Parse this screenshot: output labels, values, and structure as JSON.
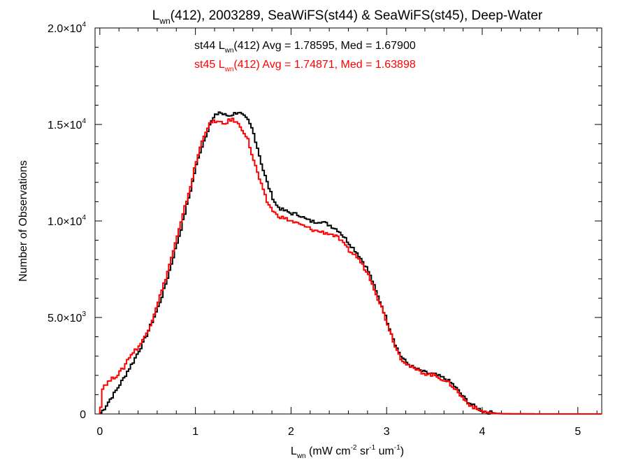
{
  "chart_data": {
    "type": "line",
    "step": true,
    "title": {
      "main": "L",
      "sub": "wn",
      "rest": "(412), 2003289, SeaWiFS(st44) & SeaWiFS(st45), Deep-Water"
    },
    "ylabel": "Number of Observations",
    "xlabel": {
      "main": "L",
      "sub": "wn",
      "units": " (mW cm",
      "sup1": "-2",
      "mid": " sr",
      "sup2": "-1",
      "mid2": " um",
      "sup3": "-1",
      "end": ")"
    },
    "xlim": [
      -0.05,
      5.25
    ],
    "ylim": [
      0,
      20000
    ],
    "x_ticks": [
      {
        "v": 0,
        "label": "0"
      },
      {
        "v": 1,
        "label": "1"
      },
      {
        "v": 2,
        "label": "2"
      },
      {
        "v": 3,
        "label": "3"
      },
      {
        "v": 4,
        "label": "4"
      },
      {
        "v": 5,
        "label": "5"
      }
    ],
    "y_ticks": [
      {
        "v": 0,
        "mant": "0",
        "exp": ""
      },
      {
        "v": 5000,
        "mant": "5.0×10",
        "exp": "3"
      },
      {
        "v": 10000,
        "mant": "1.0×10",
        "exp": "4"
      },
      {
        "v": 15000,
        "mant": "1.5×10",
        "exp": "4"
      },
      {
        "v": 20000,
        "mant": "2.0×10",
        "exp": "4"
      }
    ],
    "annotations": [
      {
        "pre": "st44 L",
        "sub": "wn",
        "post": "(412) Avg = 1.78595, Med = 1.67900",
        "color": "#000000"
      },
      {
        "pre": "st45 L",
        "sub": "wn",
        "post": "(412) Avg = 1.74871, Med = 1.63898",
        "color": "#ff0000"
      }
    ],
    "series": [
      {
        "color": "#000000",
        "points": [
          [
            0,
            0
          ],
          [
            0.05,
            300
          ],
          [
            0.1,
            700
          ],
          [
            0.15,
            1050
          ],
          [
            0.2,
            1450
          ],
          [
            0.25,
            1850
          ],
          [
            0.3,
            2300
          ],
          [
            0.35,
            2700
          ],
          [
            0.4,
            3200
          ],
          [
            0.45,
            3650
          ],
          [
            0.5,
            4200
          ],
          [
            0.55,
            4800
          ],
          [
            0.6,
            5400
          ],
          [
            0.65,
            6100
          ],
          [
            0.7,
            6900
          ],
          [
            0.75,
            7800
          ],
          [
            0.8,
            8700
          ],
          [
            0.85,
            9600
          ],
          [
            0.9,
            10600
          ],
          [
            0.95,
            11600
          ],
          [
            1.0,
            12700
          ],
          [
            1.05,
            13600
          ],
          [
            1.1,
            14300
          ],
          [
            1.15,
            15000
          ],
          [
            1.2,
            15400
          ],
          [
            1.25,
            15650
          ],
          [
            1.3,
            15500
          ],
          [
            1.35,
            15450
          ],
          [
            1.4,
            15550
          ],
          [
            1.45,
            15650
          ],
          [
            1.5,
            15450
          ],
          [
            1.55,
            15200
          ],
          [
            1.6,
            14700
          ],
          [
            1.65,
            13800
          ],
          [
            1.7,
            12800
          ],
          [
            1.75,
            12000
          ],
          [
            1.8,
            11300
          ],
          [
            1.85,
            10800
          ],
          [
            1.9,
            10600
          ],
          [
            1.95,
            10500
          ],
          [
            2.0,
            10400
          ],
          [
            2.05,
            10350
          ],
          [
            2.1,
            10300
          ],
          [
            2.15,
            10100
          ],
          [
            2.2,
            10000
          ],
          [
            2.25,
            9950
          ],
          [
            2.3,
            10000
          ],
          [
            2.35,
            9900
          ],
          [
            2.4,
            9800
          ],
          [
            2.45,
            9650
          ],
          [
            2.5,
            9500
          ],
          [
            2.55,
            9200
          ],
          [
            2.6,
            8900
          ],
          [
            2.65,
            8600
          ],
          [
            2.7,
            8300
          ],
          [
            2.75,
            7900
          ],
          [
            2.8,
            7500
          ],
          [
            2.85,
            6900
          ],
          [
            2.9,
            6200
          ],
          [
            2.95,
            5600
          ],
          [
            3.0,
            4900
          ],
          [
            3.05,
            4200
          ],
          [
            3.1,
            3500
          ],
          [
            3.15,
            3000
          ],
          [
            3.2,
            2700
          ],
          [
            3.25,
            2500
          ],
          [
            3.3,
            2350
          ],
          [
            3.35,
            2250
          ],
          [
            3.4,
            2150
          ],
          [
            3.45,
            2100
          ],
          [
            3.5,
            2050
          ],
          [
            3.55,
            1950
          ],
          [
            3.6,
            1850
          ],
          [
            3.65,
            1700
          ],
          [
            3.7,
            1500
          ],
          [
            3.75,
            1200
          ],
          [
            3.8,
            900
          ],
          [
            3.85,
            650
          ],
          [
            3.9,
            450
          ],
          [
            3.95,
            300
          ],
          [
            4.0,
            180
          ],
          [
            4.05,
            100
          ],
          [
            4.1,
            60
          ],
          [
            4.15,
            30
          ],
          [
            4.2,
            15
          ],
          [
            4.3,
            5
          ],
          [
            4.5,
            2
          ],
          [
            5.0,
            0
          ],
          [
            5.25,
            0
          ]
        ]
      },
      {
        "color": "#ff0000",
        "points": [
          [
            0,
            0
          ],
          [
            0.03,
            1300
          ],
          [
            0.05,
            1500
          ],
          [
            0.1,
            1700
          ],
          [
            0.15,
            1900
          ],
          [
            0.2,
            2100
          ],
          [
            0.25,
            2400
          ],
          [
            0.3,
            2900
          ],
          [
            0.35,
            3200
          ],
          [
            0.4,
            3450
          ],
          [
            0.45,
            3800
          ],
          [
            0.5,
            4300
          ],
          [
            0.55,
            4900
          ],
          [
            0.6,
            5700
          ],
          [
            0.65,
            6400
          ],
          [
            0.7,
            7200
          ],
          [
            0.75,
            8100
          ],
          [
            0.8,
            9000
          ],
          [
            0.85,
            9900
          ],
          [
            0.9,
            10900
          ],
          [
            0.95,
            11800
          ],
          [
            1.0,
            12900
          ],
          [
            1.05,
            13800
          ],
          [
            1.1,
            14600
          ],
          [
            1.15,
            15000
          ],
          [
            1.2,
            15200
          ],
          [
            1.25,
            15100
          ],
          [
            1.3,
            15000
          ],
          [
            1.35,
            15200
          ],
          [
            1.4,
            15250
          ],
          [
            1.45,
            15000
          ],
          [
            1.5,
            14700
          ],
          [
            1.55,
            14200
          ],
          [
            1.6,
            13300
          ],
          [
            1.65,
            12500
          ],
          [
            1.7,
            11700
          ],
          [
            1.75,
            11000
          ],
          [
            1.8,
            10600
          ],
          [
            1.85,
            10300
          ],
          [
            1.9,
            10200
          ],
          [
            1.95,
            10100
          ],
          [
            2.0,
            10000
          ],
          [
            2.05,
            9900
          ],
          [
            2.1,
            9800
          ],
          [
            2.15,
            9700
          ],
          [
            2.2,
            9600
          ],
          [
            2.25,
            9500
          ],
          [
            2.3,
            9450
          ],
          [
            2.35,
            9400
          ],
          [
            2.4,
            9350
          ],
          [
            2.45,
            9250
          ],
          [
            2.5,
            9100
          ],
          [
            2.55,
            8800
          ],
          [
            2.6,
            8500
          ],
          [
            2.65,
            8300
          ],
          [
            2.7,
            8100
          ],
          [
            2.75,
            7700
          ],
          [
            2.8,
            7300
          ],
          [
            2.85,
            6800
          ],
          [
            2.9,
            6100
          ],
          [
            2.95,
            5500
          ],
          [
            3.0,
            4800
          ],
          [
            3.05,
            4100
          ],
          [
            3.1,
            3400
          ],
          [
            3.15,
            2900
          ],
          [
            3.2,
            2650
          ],
          [
            3.25,
            2450
          ],
          [
            3.3,
            2300
          ],
          [
            3.35,
            2200
          ],
          [
            3.4,
            2100
          ],
          [
            3.45,
            2050
          ],
          [
            3.5,
            2000
          ],
          [
            3.55,
            1900
          ],
          [
            3.6,
            1750
          ],
          [
            3.65,
            1600
          ],
          [
            3.7,
            1400
          ],
          [
            3.75,
            1100
          ],
          [
            3.8,
            800
          ],
          [
            3.85,
            560
          ],
          [
            3.9,
            380
          ],
          [
            3.95,
            240
          ],
          [
            4.0,
            140
          ],
          [
            4.05,
            80
          ],
          [
            4.1,
            45
          ],
          [
            4.15,
            20
          ],
          [
            4.2,
            10
          ],
          [
            4.3,
            4
          ],
          [
            4.5,
            1
          ],
          [
            5.0,
            0
          ],
          [
            5.25,
            0
          ]
        ]
      }
    ]
  }
}
